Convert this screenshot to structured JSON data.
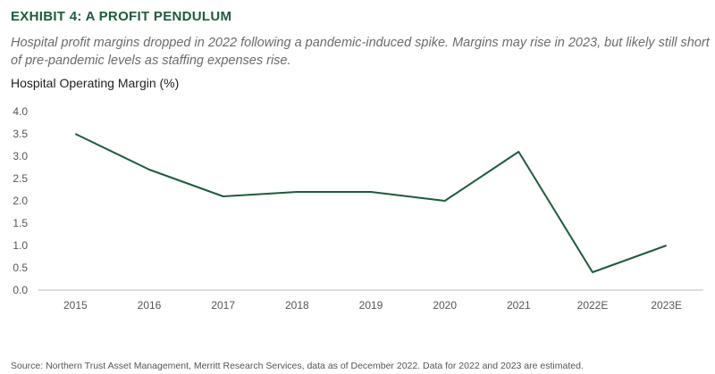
{
  "header": {
    "title": "EXHIBIT 4: A PROFIT PENDULUM",
    "subtitle": "Hospital profit margins dropped in 2022 following a pandemic-induced spike. Margins may rise in 2023, but likely still short of pre-pandemic levels as staffing expenses rise."
  },
  "footer": {
    "source": "Source: Northern Trust Asset Management, Merritt Research Services, data as of December 2022. Data for 2022 and 2023 are estimated."
  },
  "chart_data": {
    "type": "line",
    "title": "EXHIBIT 4: A PROFIT PENDULUM",
    "ylabel": "Hospital Operating Margin (%)",
    "xlabel": "",
    "categories": [
      "2015",
      "2016",
      "2017",
      "2018",
      "2019",
      "2020",
      "2021",
      "2022E",
      "2023E"
    ],
    "series": [
      {
        "values": [
          3.5,
          2.7,
          2.1,
          2.2,
          2.2,
          2.0,
          3.1,
          0.4,
          1.0
        ]
      }
    ],
    "ylim": [
      0,
      4
    ],
    "yticks": [
      "4.0",
      "3.5",
      "3.0",
      "2.5",
      "2.0",
      "1.5",
      "1.0",
      "0.5",
      "0.0"
    ],
    "grid": false,
    "legend": "none",
    "colors": {
      "line": "#1f5b3d",
      "title": "#1f5b3d",
      "axis": "#bbbbbb"
    }
  }
}
